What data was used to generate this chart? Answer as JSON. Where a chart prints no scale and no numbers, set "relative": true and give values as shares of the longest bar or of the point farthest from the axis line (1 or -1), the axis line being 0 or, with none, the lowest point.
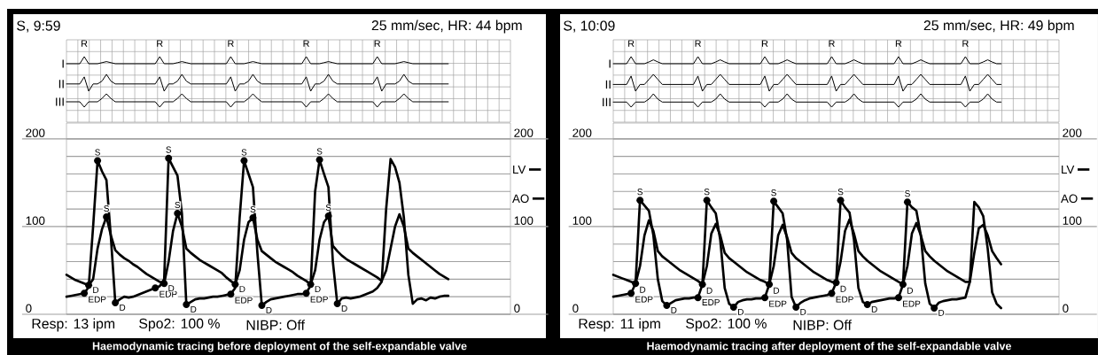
{
  "chart_data": [
    {
      "type": "line",
      "relative": true,
      "grid": true,
      "title": "S, 9:59",
      "subtitle": "25 mm/sec, HR: 44 bpm",
      "annotations": [
        "R",
        "R",
        "R",
        "R",
        "R"
      ],
      "categories": [
        null,
        null,
        null,
        null,
        null,
        null,
        null,
        null,
        null,
        null,
        null,
        null,
        null,
        null,
        null,
        null,
        null,
        null,
        null,
        null,
        null,
        null,
        null,
        null,
        null,
        null,
        null,
        null,
        null,
        null,
        null,
        null,
        null,
        null,
        null,
        null,
        null,
        null,
        null,
        null,
        null,
        null,
        null,
        null,
        null,
        null,
        null,
        null,
        null,
        null,
        null,
        null,
        null,
        null,
        null,
        null,
        null,
        null,
        null,
        null,
        null,
        null,
        null,
        null,
        null,
        null,
        null,
        null,
        null,
        null,
        null,
        null,
        null,
        null,
        null,
        null,
        null,
        null,
        null,
        null,
        null,
        null,
        null,
        null,
        null,
        null,
        null,
        null,
        null,
        null,
        null,
        null,
        null,
        null,
        null,
        null,
        null,
        null,
        null,
        null,
        null
      ],
      "series": [
        {
          "name": "I",
          "color": "#000000",
          "values": [
            0,
            0,
            0,
            0,
            1,
            0,
            0,
            0,
            0.15,
            0.3,
            0.15,
            0,
            0,
            0,
            0,
            0,
            0,
            0,
            0,
            0,
            0,
            1,
            0,
            0,
            0,
            0.15,
            0.3,
            0.15,
            0,
            0,
            0,
            0,
            0,
            0,
            0,
            0,
            0,
            1,
            0,
            0,
            0,
            0.15,
            0.3,
            0.15,
            0,
            0,
            0,
            0,
            0,
            0,
            0,
            0,
            0,
            0,
            1,
            0,
            0,
            0,
            0.15,
            0.3,
            0.15,
            0,
            0,
            0,
            0,
            0,
            0,
            0,
            0,
            0,
            1,
            0,
            0,
            0,
            0,
            0.15,
            0.3,
            0.15,
            0,
            0,
            0,
            0,
            0,
            0,
            0,
            0,
            0,
            null,
            null,
            null,
            null,
            null,
            null,
            null,
            null,
            null,
            null,
            null,
            null,
            null,
            null
          ]
        }
      ]
    },
    {
      "type": "line",
      "relative": true,
      "categories": [
        null,
        null,
        null,
        null,
        null,
        null,
        null,
        null,
        null,
        null,
        null,
        null,
        null,
        null,
        null,
        null,
        null,
        null,
        null,
        null,
        null,
        null,
        null,
        null,
        null,
        null,
        null,
        null,
        null,
        null,
        null,
        null,
        null,
        null,
        null,
        null,
        null,
        null,
        null,
        null,
        null,
        null,
        null,
        null,
        null,
        null,
        null,
        null,
        null,
        null,
        null,
        null,
        null,
        null,
        null,
        null,
        null,
        null,
        null,
        null,
        null,
        null,
        null,
        null,
        null,
        null,
        null,
        null,
        null,
        null,
        null,
        null,
        null,
        null,
        null,
        null,
        null,
        null,
        null,
        null,
        null,
        null,
        null,
        null,
        null,
        null,
        null,
        null,
        null,
        null,
        null,
        null,
        null,
        null,
        null,
        null,
        null,
        null,
        null,
        null,
        null
      ],
      "series": [
        {
          "name": "II",
          "color": "#000000",
          "values": [
            0.43,
            0.43,
            0.43,
            0.43,
            0.85,
            0,
            0.43,
            0.43,
            0.6,
            1,
            0.6,
            0.43,
            0.43,
            0.43,
            0.43,
            0.43,
            0.43,
            0.43,
            0.43,
            0.43,
            0.43,
            0.85,
            0,
            0.43,
            0.43,
            0.6,
            1,
            0.6,
            0.43,
            0.43,
            0.43,
            0.43,
            0.43,
            0.43,
            0.43,
            0.43,
            0.43,
            0.85,
            0,
            0.43,
            0.43,
            0.6,
            1,
            0.6,
            0.43,
            0.43,
            0.43,
            0.43,
            0.43,
            0.43,
            0.43,
            0.43,
            0.43,
            0.43,
            0.85,
            0,
            0.43,
            0.43,
            0.6,
            1,
            0.6,
            0.43,
            0.43,
            0.43,
            0.43,
            0.43,
            0.43,
            0.43,
            0.43,
            0.43,
            0.85,
            0,
            0.43,
            0.43,
            0.43,
            0.6,
            1,
            0.6,
            0.43,
            0.43,
            0.43,
            0.43,
            0.43,
            0.43,
            0.43,
            0.43,
            0.43,
            null,
            null,
            null,
            null,
            null,
            null,
            null,
            null,
            null,
            null,
            null,
            null,
            null,
            null
          ]
        }
      ]
    },
    {
      "type": "line",
      "relative": true,
      "categories": [
        null,
        null,
        null,
        null,
        null,
        null,
        null,
        null,
        null,
        null,
        null,
        null,
        null,
        null,
        null,
        null,
        null,
        null,
        null,
        null,
        null,
        null,
        null,
        null,
        null,
        null,
        null,
        null,
        null,
        null,
        null,
        null,
        null,
        null,
        null,
        null,
        null,
        null,
        null,
        null,
        null,
        null,
        null,
        null,
        null,
        null,
        null,
        null,
        null,
        null,
        null,
        null,
        null,
        null,
        null,
        null,
        null,
        null,
        null,
        null,
        null,
        null,
        null,
        null,
        null,
        null,
        null,
        null,
        null,
        null,
        null,
        null,
        null,
        null,
        null,
        null,
        null,
        null,
        null,
        null,
        null,
        null,
        null,
        null,
        null,
        null,
        null,
        null,
        null,
        null,
        null,
        null,
        null,
        null,
        null,
        null,
        null,
        null,
        null,
        null,
        null
      ],
      "series": [
        {
          "name": "III",
          "color": "#000000",
          "values": [
            0.4,
            0.4,
            0.4,
            0.4,
            0,
            0.4,
            0.4,
            0.4,
            0.65,
            1,
            0.65,
            0.4,
            0.4,
            0.4,
            0.4,
            0.4,
            0.4,
            0.4,
            0.4,
            0.4,
            0.4,
            0,
            0.4,
            0.4,
            0.4,
            0.65,
            1,
            0.65,
            0.4,
            0.4,
            0.4,
            0.4,
            0.4,
            0.4,
            0.4,
            0.4,
            0.4,
            0,
            0.4,
            0.4,
            0.4,
            0.65,
            1,
            0.65,
            0.4,
            0.4,
            0.4,
            0.4,
            0.4,
            0.4,
            0.4,
            0.4,
            0.4,
            0.4,
            0,
            0.4,
            0.4,
            0.4,
            0.65,
            1,
            0.65,
            0.4,
            0.4,
            0.4,
            0.4,
            0.4,
            0.4,
            0.4,
            0.4,
            0.4,
            0,
            0.4,
            0.4,
            0.4,
            0.4,
            0.65,
            1,
            0.65,
            0.4,
            0.4,
            0.4,
            0.4,
            0.4,
            0.4,
            0.4,
            0.4,
            0.4,
            null,
            null,
            null,
            null,
            null,
            null,
            null,
            null,
            null,
            null,
            null,
            null,
            null,
            null
          ]
        }
      ]
    },
    {
      "type": "line",
      "grid": "y",
      "legend": "right",
      "ylim": [
        0,
        218
      ],
      "yticks": [
        0,
        {
          "value": 20,
          "label": null
        },
        {
          "value": 40,
          "label": null
        },
        {
          "value": 60,
          "label": null
        },
        {
          "value": 80,
          "label": null
        },
        100,
        {
          "value": 120,
          "label": null
        },
        {
          "value": 140,
          "label": null
        },
        {
          "value": 160,
          "label": null
        },
        {
          "value": 180,
          "label": null
        },
        200
      ],
      "y2lim": [
        0,
        218
      ],
      "y2ticks": [
        0,
        100,
        200
      ],
      "annotations": [
        "Resp: 13 ipm",
        "Spo2: 100 %",
        "NIBP: Off",
        "Haemodynamic tracing before deployment of the self-expandable valve"
      ],
      "categories": [
        null,
        null,
        null,
        null,
        null,
        null,
        null,
        null,
        null,
        null,
        null,
        null,
        null,
        null,
        null,
        null,
        null,
        null,
        null,
        null,
        null,
        null,
        null,
        null,
        null,
        null,
        null,
        null,
        null,
        null,
        null,
        null,
        null,
        null,
        null,
        null,
        null,
        null,
        null,
        null,
        null,
        null,
        null,
        null,
        null,
        null,
        null,
        null,
        null,
        null,
        null,
        null,
        null,
        null,
        null,
        null,
        null,
        null,
        null,
        null,
        null,
        null,
        null,
        null,
        null,
        null,
        null,
        null,
        null,
        null,
        null,
        null,
        null,
        null,
        null,
        null,
        null,
        null,
        null,
        null,
        null,
        null,
        null,
        null,
        null,
        null,
        null,
        null,
        null,
        null,
        null,
        null,
        null,
        null,
        null,
        null,
        null,
        null,
        null,
        null,
        null
      ],
      "series": [
        {
          "name": "LV",
          "color": "#000000",
          "values": [
            20,
            21,
            22,
            23,
            24,
            31,
            100,
            175,
            163,
            153,
            88,
            13,
            17,
            20,
            19,
            20,
            22,
            24,
            26,
            28,
            30,
            32,
            40,
            178,
            168,
            158,
            115,
            11,
            14,
            17,
            18,
            18,
            19,
            20,
            20,
            21,
            22,
            23,
            30,
            110,
            175,
            160,
            145,
            70,
            10,
            14,
            17,
            18,
            19,
            20,
            21,
            22,
            23,
            23,
            24,
            33,
            140,
            176,
            160,
            145,
            60,
            12,
            18,
            19,
            18,
            19,
            20,
            22,
            24,
            26,
            30,
            37,
            120,
            177,
            168,
            150,
            110,
            45,
            12,
            17,
            18,
            16,
            19,
            18,
            20,
            21,
            21,
            null,
            null,
            null,
            null,
            null,
            null,
            null,
            null,
            null,
            null,
            null,
            null,
            null,
            null
          ],
          "value_labels": [
            null,
            null,
            null,
            null,
            "EDP",
            null,
            null,
            "S",
            null,
            null,
            null,
            "D",
            null,
            null,
            null,
            null,
            null,
            null,
            null,
            null,
            "EDP",
            null,
            null,
            "S",
            null,
            null,
            null,
            "D",
            null,
            null,
            null,
            null,
            null,
            null,
            null,
            null,
            null,
            "EDP",
            null,
            null,
            "S",
            null,
            null,
            null,
            "D",
            null,
            null,
            null,
            null,
            null,
            null,
            null,
            null,
            null,
            "EDP",
            null,
            null,
            "S",
            null,
            null,
            null,
            "D",
            null,
            null,
            null,
            null,
            null,
            null,
            null,
            null,
            null,
            null,
            null,
            null,
            null,
            null,
            null,
            null,
            null,
            null,
            null,
            null,
            null,
            null,
            null,
            null,
            null,
            null,
            null,
            null,
            null,
            null,
            null,
            null,
            null,
            null,
            null,
            null,
            null,
            null,
            null
          ]
        },
        {
          "name": "AO",
          "color": "#000000",
          "values": [
            45,
            42,
            39,
            37,
            35,
            33,
            40,
            75,
            97,
            111,
            90,
            73,
            68,
            64,
            61,
            57,
            54,
            50,
            46,
            43,
            40,
            37,
            35,
            60,
            95,
            115,
            100,
            75,
            70,
            66,
            62,
            59,
            56,
            53,
            50,
            47,
            42,
            38,
            34,
            50,
            85,
            105,
            110,
            85,
            72,
            68,
            64,
            60,
            57,
            54,
            51,
            48,
            44,
            41,
            38,
            34,
            50,
            85,
            105,
            112,
            78,
            72,
            67,
            63,
            60,
            57,
            54,
            51,
            48,
            45,
            42,
            38,
            50,
            75,
            100,
            114,
            100,
            75,
            70,
            66,
            62,
            58,
            54,
            50,
            46,
            43,
            40,
            null,
            null,
            null,
            null,
            null,
            null,
            null,
            null,
            null,
            null,
            null,
            null,
            null,
            null
          ],
          "value_labels": [
            null,
            null,
            null,
            null,
            null,
            "D",
            null,
            null,
            null,
            "S",
            null,
            null,
            null,
            null,
            null,
            null,
            null,
            null,
            null,
            null,
            null,
            null,
            "D",
            null,
            null,
            "S",
            null,
            null,
            null,
            null,
            null,
            null,
            null,
            null,
            null,
            null,
            null,
            null,
            "D",
            null,
            null,
            null,
            "S",
            null,
            null,
            null,
            null,
            null,
            null,
            null,
            null,
            null,
            null,
            null,
            null,
            "D",
            null,
            null,
            null,
            "S",
            null,
            null,
            null,
            null,
            null,
            null,
            null,
            null,
            null,
            null,
            null,
            null,
            null,
            null,
            null,
            null,
            null,
            null,
            null,
            null,
            null,
            null,
            null,
            null,
            null,
            null,
            null,
            null,
            null,
            null,
            null,
            null,
            null,
            null,
            null,
            null,
            null,
            null,
            null,
            null,
            null
          ]
        }
      ]
    },
    {
      "type": "line",
      "relative": true,
      "grid": true,
      "title": "S, 10:09",
      "subtitle": "25 mm/sec, HR: 49 bpm",
      "annotations": [
        "R",
        "R",
        "R",
        "R",
        "R",
        "R"
      ],
      "categories": [
        null,
        null,
        null,
        null,
        null,
        null,
        null,
        null,
        null,
        null,
        null,
        null,
        null,
        null,
        null,
        null,
        null,
        null,
        null,
        null,
        null,
        null,
        null,
        null,
        null,
        null,
        null,
        null,
        null,
        null,
        null,
        null,
        null,
        null,
        null,
        null,
        null,
        null,
        null,
        null,
        null,
        null,
        null,
        null,
        null,
        null,
        null,
        null,
        null,
        null,
        null,
        null,
        null,
        null,
        null,
        null,
        null,
        null,
        null,
        null,
        null,
        null,
        null,
        null,
        null,
        null,
        null,
        null,
        null,
        null,
        null,
        null,
        null,
        null,
        null,
        null,
        null,
        null,
        null,
        null,
        null,
        null,
        null,
        null,
        null,
        null,
        null,
        null,
        null,
        null,
        null,
        null,
        null,
        null,
        null,
        null,
        null,
        null,
        null,
        null,
        null
      ],
      "series": [
        {
          "name": "I",
          "color": "#000000",
          "values": [
            0,
            0,
            0,
            0,
            1,
            0,
            0,
            0,
            0.25,
            0.55,
            0.25,
            0,
            0,
            0,
            0,
            0,
            0,
            0,
            0,
            1,
            0,
            0,
            0,
            0.25,
            0.55,
            0.25,
            0,
            0,
            0,
            0,
            0,
            0,
            0,
            0,
            1,
            0,
            0,
            0,
            0.25,
            0.55,
            0.25,
            0,
            0,
            0,
            0,
            0,
            0,
            0,
            0,
            1,
            0,
            0,
            0,
            0.25,
            0.55,
            0.25,
            0,
            0,
            0,
            0,
            0,
            0,
            0,
            0,
            1,
            0,
            0,
            0,
            0.25,
            0.55,
            0.25,
            0,
            0,
            0,
            0,
            0,
            0,
            0,
            0,
            1,
            0,
            0,
            0,
            0.25,
            0.55,
            0.25,
            0,
            0,
            null,
            null,
            null,
            null,
            null,
            null,
            null,
            null,
            null,
            null,
            null,
            null,
            null
          ]
        }
      ]
    },
    {
      "type": "line",
      "relative": true,
      "categories": [
        null,
        null,
        null,
        null,
        null,
        null,
        null,
        null,
        null,
        null,
        null,
        null,
        null,
        null,
        null,
        null,
        null,
        null,
        null,
        null,
        null,
        null,
        null,
        null,
        null,
        null,
        null,
        null,
        null,
        null,
        null,
        null,
        null,
        null,
        null,
        null,
        null,
        null,
        null,
        null,
        null,
        null,
        null,
        null,
        null,
        null,
        null,
        null,
        null,
        null,
        null,
        null,
        null,
        null,
        null,
        null,
        null,
        null,
        null,
        null,
        null,
        null,
        null,
        null,
        null,
        null,
        null,
        null,
        null,
        null,
        null,
        null,
        null,
        null,
        null,
        null,
        null,
        null,
        null,
        null,
        null,
        null,
        null,
        null,
        null,
        null,
        null,
        null,
        null,
        null,
        null,
        null,
        null,
        null,
        null,
        null,
        null,
        null,
        null,
        null,
        null
      ],
      "series": [
        {
          "name": "II",
          "color": "#000000",
          "values": [
            0.4,
            0.4,
            0.4,
            0.4,
            0.9,
            0,
            0.4,
            0.4,
            0.7,
            1,
            0.7,
            0.4,
            0.4,
            0.4,
            0.4,
            0.4,
            0.4,
            0.4,
            0.4,
            0.9,
            0,
            0.4,
            0.4,
            0.7,
            1,
            0.7,
            0.4,
            0.4,
            0.4,
            0.4,
            0.4,
            0.4,
            0.4,
            0.4,
            0.9,
            0,
            0.4,
            0.4,
            0.7,
            1,
            0.7,
            0.4,
            0.4,
            0.4,
            0.4,
            0.4,
            0.4,
            0.4,
            0.4,
            0.9,
            0,
            0.4,
            0.4,
            0.7,
            1,
            0.7,
            0.4,
            0.4,
            0.4,
            0.4,
            0.4,
            0.4,
            0.4,
            0.4,
            0.9,
            0,
            0.4,
            0.4,
            0.7,
            1,
            0.7,
            0.4,
            0.4,
            0.4,
            0.4,
            0.4,
            0.4,
            0.4,
            0.4,
            0.9,
            0,
            0.4,
            0.4,
            0.7,
            1,
            0.7,
            0.4,
            0.4,
            null,
            null,
            null,
            null,
            null,
            null,
            null,
            null,
            null,
            null,
            null,
            null,
            null
          ]
        }
      ]
    },
    {
      "type": "line",
      "relative": true,
      "categories": [
        null,
        null,
        null,
        null,
        null,
        null,
        null,
        null,
        null,
        null,
        null,
        null,
        null,
        null,
        null,
        null,
        null,
        null,
        null,
        null,
        null,
        null,
        null,
        null,
        null,
        null,
        null,
        null,
        null,
        null,
        null,
        null,
        null,
        null,
        null,
        null,
        null,
        null,
        null,
        null,
        null,
        null,
        null,
        null,
        null,
        null,
        null,
        null,
        null,
        null,
        null,
        null,
        null,
        null,
        null,
        null,
        null,
        null,
        null,
        null,
        null,
        null,
        null,
        null,
        null,
        null,
        null,
        null,
        null,
        null,
        null,
        null,
        null,
        null,
        null,
        null,
        null,
        null,
        null,
        null,
        null,
        null,
        null,
        null,
        null,
        null,
        null,
        null,
        null,
        null,
        null,
        null,
        null,
        null,
        null,
        null,
        null,
        null,
        null,
        null,
        null
      ],
      "series": [
        {
          "name": "III",
          "color": "#000000",
          "values": [
            0.38,
            0.38,
            0.38,
            0.38,
            0,
            0.38,
            0.38,
            0.38,
            0.6,
            1,
            0.6,
            0.38,
            0.38,
            0.38,
            0.38,
            0.38,
            0.38,
            0.38,
            0.38,
            0,
            0.38,
            0.38,
            0.38,
            0.6,
            1,
            0.6,
            0.38,
            0.38,
            0.38,
            0.38,
            0.38,
            0.38,
            0.38,
            0.38,
            0,
            0.38,
            0.38,
            0.38,
            0.6,
            1,
            0.6,
            0.38,
            0.38,
            0.38,
            0.38,
            0.38,
            0.38,
            0.38,
            0.38,
            0,
            0.38,
            0.38,
            0.38,
            0.6,
            1,
            0.6,
            0.38,
            0.38,
            0.38,
            0.38,
            0.38,
            0.38,
            0.38,
            0.38,
            0,
            0.38,
            0.38,
            0.38,
            0.6,
            1,
            0.6,
            0.38,
            0.38,
            0.38,
            0.38,
            0.38,
            0.38,
            0.38,
            0.38,
            0,
            0.38,
            0.38,
            0.38,
            0.6,
            1,
            0.6,
            0.38,
            0.38,
            null,
            null,
            null,
            null,
            null,
            null,
            null,
            null,
            null,
            null,
            null,
            null,
            null
          ]
        }
      ]
    },
    {
      "type": "line",
      "grid": "y",
      "legend": "right",
      "ylim": [
        0,
        218
      ],
      "yticks": [
        0,
        {
          "value": 20,
          "label": null
        },
        {
          "value": 40,
          "label": null
        },
        {
          "value": 60,
          "label": null
        },
        {
          "value": 80,
          "label": null
        },
        100,
        {
          "value": 120,
          "label": null
        },
        {
          "value": 140,
          "label": null
        },
        {
          "value": 160,
          "label": null
        },
        {
          "value": 180,
          "label": null
        },
        200
      ],
      "y2lim": [
        0,
        218
      ],
      "y2ticks": [
        0,
        100,
        200
      ],
      "annotations": [
        "Resp: 11 ipm",
        "Spo2: 100 %",
        "NIBP: Off",
        "Haemodynamic tracing after deployment of the self-expandable valve"
      ],
      "categories": [
        null,
        null,
        null,
        null,
        null,
        null,
        null,
        null,
        null,
        null,
        null,
        null,
        null,
        null,
        null,
        null,
        null,
        null,
        null,
        null,
        null,
        null,
        null,
        null,
        null,
        null,
        null,
        null,
        null,
        null,
        null,
        null,
        null,
        null,
        null,
        null,
        null,
        null,
        null,
        null,
        null,
        null,
        null,
        null,
        null,
        null,
        null,
        null,
        null,
        null,
        null,
        null,
        null,
        null,
        null,
        null,
        null,
        null,
        null,
        null,
        null,
        null,
        null,
        null,
        null,
        null,
        null,
        null,
        null,
        null,
        null,
        null,
        null,
        null,
        null,
        null,
        null,
        null,
        null,
        null,
        null,
        null,
        null,
        null,
        null,
        null,
        null,
        null,
        null,
        null,
        null,
        null,
        null,
        null,
        null,
        null,
        null,
        null,
        null,
        null,
        null
      ],
      "series": [
        {
          "name": "LV",
          "color": "#000000",
          "values": [
            20,
            21,
            22,
            23,
            24,
            35,
            130,
            124,
            118,
            90,
            40,
            15,
            10,
            13,
            16,
            17,
            18,
            18,
            19,
            19,
            34,
            130,
            122,
            115,
            85,
            30,
            12,
            8,
            14,
            16,
            17,
            17,
            18,
            18,
            19,
            34,
            129,
            122,
            115,
            85,
            20,
            8,
            13,
            16,
            18,
            19,
            20,
            21,
            22,
            24,
            36,
            130,
            122,
            116,
            85,
            30,
            14,
            11,
            14,
            15,
            16,
            17,
            18,
            18,
            19,
            34,
            128,
            122,
            118,
            90,
            35,
            12,
            7,
            13,
            15,
            16,
            17,
            17,
            18,
            19,
            37,
            128,
            122,
            112,
            75,
            25,
            12,
            7,
            null,
            null,
            null,
            null,
            null,
            null,
            null,
            null,
            null,
            null,
            null,
            null,
            null
          ],
          "value_labels": [
            null,
            null,
            null,
            null,
            "EDP",
            "D",
            "S",
            null,
            null,
            null,
            null,
            null,
            "D",
            null,
            null,
            null,
            null,
            null,
            null,
            "EDP",
            "D",
            "S",
            null,
            null,
            null,
            null,
            null,
            "D",
            null,
            null,
            null,
            null,
            null,
            null,
            "EDP",
            "D",
            "S",
            null,
            null,
            null,
            null,
            "D",
            null,
            null,
            null,
            null,
            null,
            null,
            null,
            "EDP",
            "D",
            "S",
            null,
            null,
            null,
            null,
            null,
            "D",
            null,
            null,
            null,
            null,
            null,
            null,
            "EDP",
            "D",
            "S",
            null,
            null,
            null,
            null,
            null,
            "D",
            null,
            null,
            null,
            null,
            null,
            null,
            null,
            null,
            null,
            null,
            null,
            null,
            null,
            null,
            null,
            null,
            null,
            null,
            null,
            null,
            null,
            null,
            null,
            null,
            null,
            null,
            null,
            null
          ]
        },
        {
          "name": "AO",
          "color": "#000000",
          "values": [
            45,
            43,
            41,
            39,
            37,
            35,
            55,
            90,
            107,
            95,
            72,
            66,
            62,
            58,
            54,
            50,
            47,
            44,
            41,
            38,
            34,
            55,
            92,
            103,
            90,
            70,
            64,
            60,
            56,
            52,
            48,
            45,
            42,
            39,
            37,
            34,
            55,
            90,
            102,
            88,
            70,
            64,
            60,
            56,
            52,
            48,
            45,
            42,
            39,
            37,
            36,
            60,
            95,
            108,
            92,
            72,
            66,
            61,
            57,
            53,
            49,
            46,
            43,
            40,
            37,
            34,
            55,
            92,
            104,
            90,
            72,
            66,
            61,
            57,
            53,
            49,
            46,
            43,
            40,
            37,
            37,
            70,
            98,
            102,
            90,
            72,
            64,
            57,
            null,
            null,
            null,
            null,
            null,
            null,
            null,
            null,
            null,
            null,
            null,
            null,
            null
          ]
        }
      ]
    }
  ]
}
